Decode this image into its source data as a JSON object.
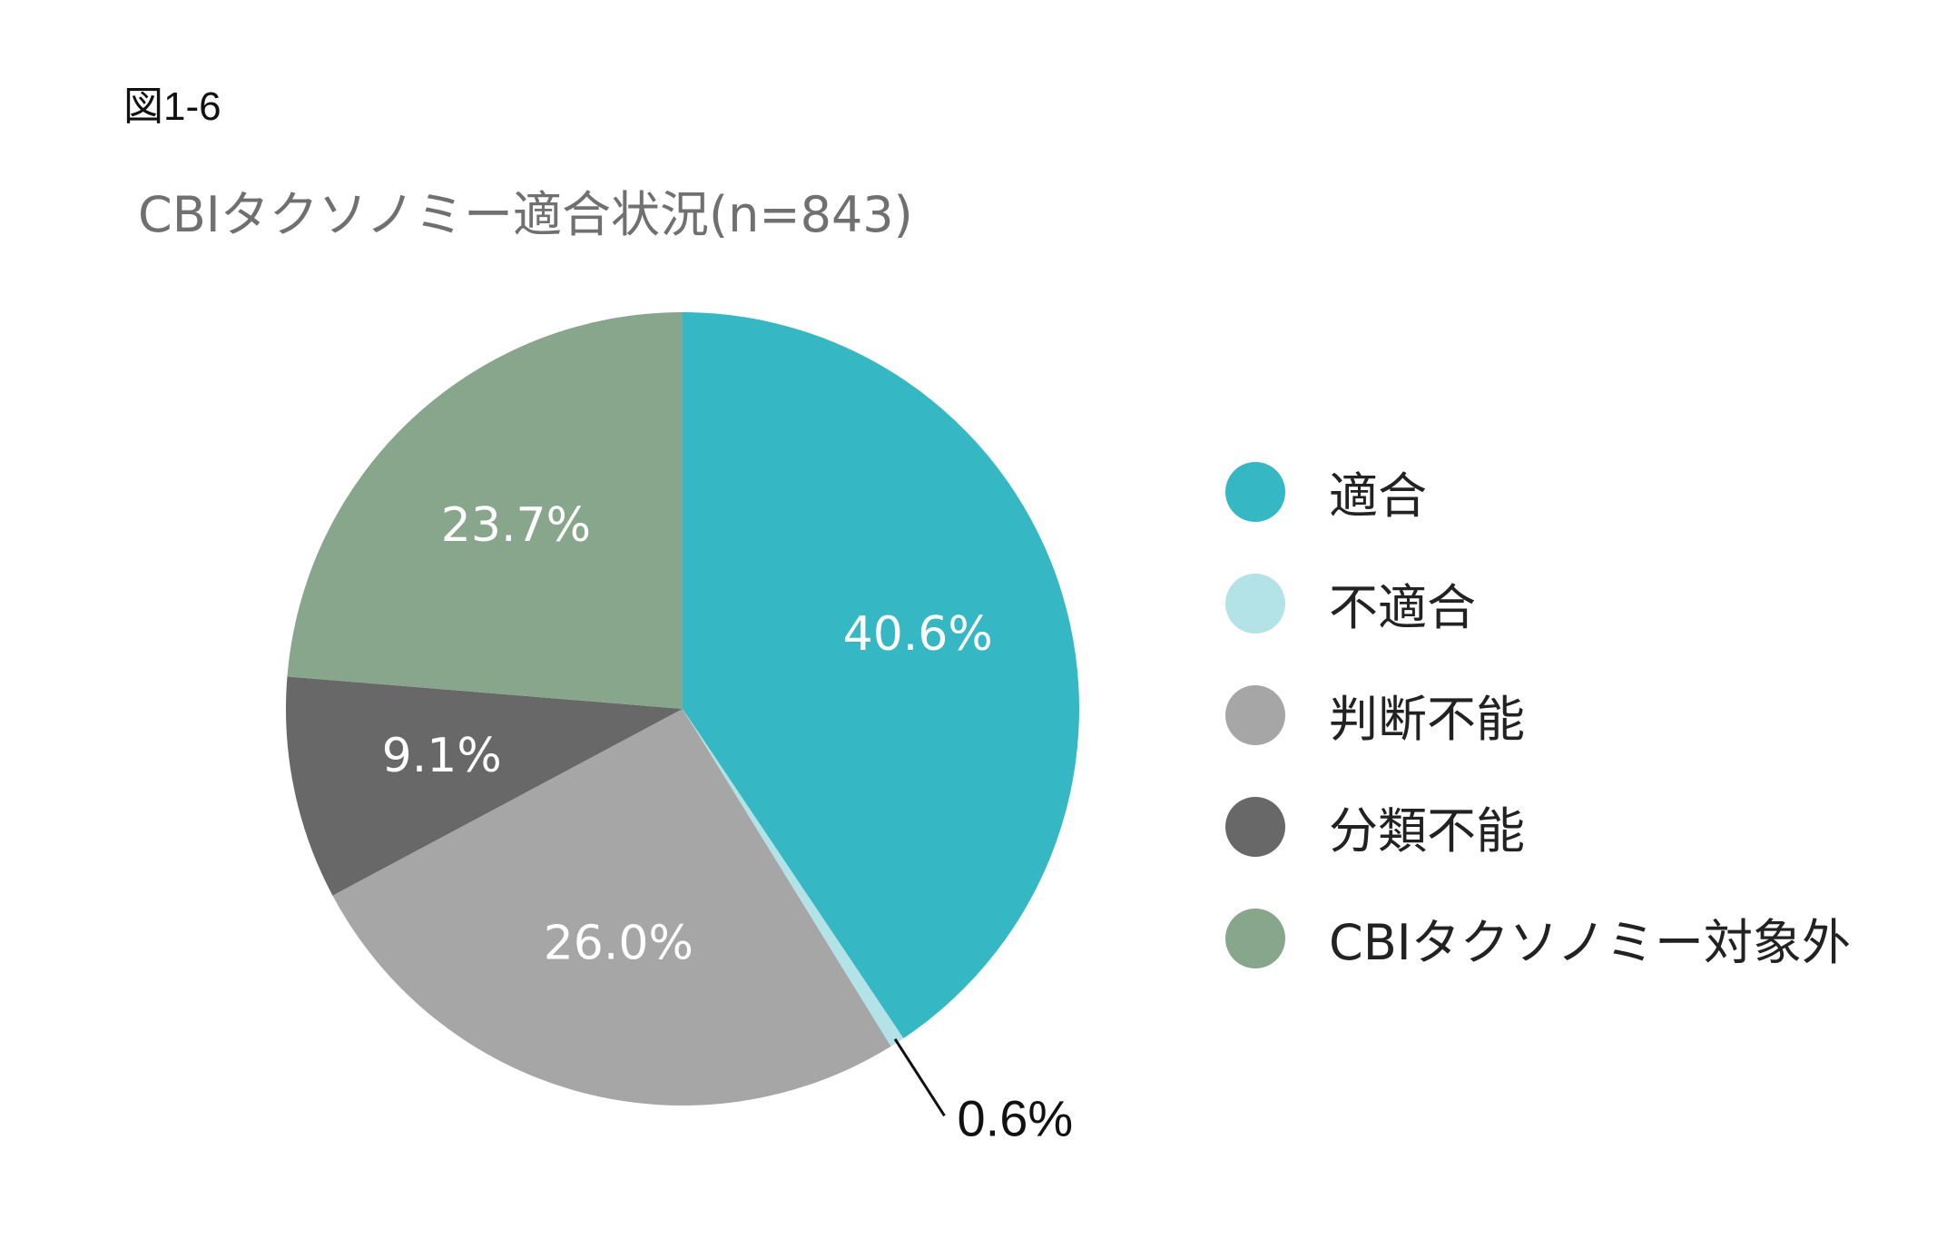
{
  "figure_label": "図1-6",
  "chart_data": {
    "type": "pie",
    "title": "CBIタクソノミー適合状況(n=843)",
    "slices": [
      {
        "label": "適合",
        "value": 40.6,
        "display": "40.6%",
        "color": "#36B7C4",
        "label_color": "#ffffff",
        "label_position": "inside"
      },
      {
        "label": "不適合",
        "value": 0.6,
        "display": "0.6%",
        "color": "#B3E2E7",
        "label_color": "#111111",
        "label_position": "outside-leader"
      },
      {
        "label": "判断不能",
        "value": 26.0,
        "display": "26.0%",
        "color": "#A6A6A6",
        "label_color": "#ffffff",
        "label_position": "inside"
      },
      {
        "label": "分類不能",
        "value": 9.1,
        "display": "9.1%",
        "color": "#686868",
        "label_color": "#ffffff",
        "label_position": "inside"
      },
      {
        "label": "CBIタクソノミー対象外",
        "value": 23.7,
        "display": "23.7%",
        "color": "#88A68C",
        "label_color": "#ffffff",
        "label_position": "inside"
      }
    ],
    "start_angle": "12 o'clock",
    "direction": "clockwise",
    "legend_position": "right"
  }
}
